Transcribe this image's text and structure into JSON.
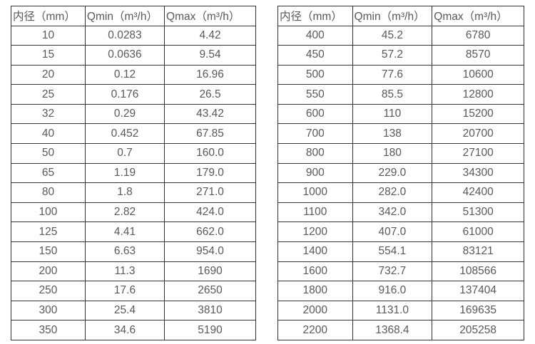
{
  "page": {
    "description_labels": {
      "diameter_header": "内径（mm）",
      "qmin_header": "Qmin（m³/h）",
      "qmax_header": "Qmax（m³/h）"
    }
  },
  "colors": {
    "text": "#595959",
    "border": "#333333",
    "background": "#ffffff"
  },
  "tables": [
    {
      "name": "small-diameter-flow-table",
      "headers": [
        "内径（mm）",
        "Qmin（m³/h）",
        "Qmax（m³/h）"
      ],
      "rows": [
        [
          "10",
          "0.0283",
          "4.42"
        ],
        [
          "15",
          "0.0636",
          "9.54"
        ],
        [
          "20",
          "0.12",
          "16.96"
        ],
        [
          "25",
          "0.176",
          "26.5"
        ],
        [
          "32",
          "0.29",
          "43.42"
        ],
        [
          "40",
          "0.452",
          "67.85"
        ],
        [
          "50",
          "0.7",
          "160.0"
        ],
        [
          "65",
          "1.19",
          "179.0"
        ],
        [
          "80",
          "1.8",
          "271.0"
        ],
        [
          "100",
          "2.82",
          "424.0"
        ],
        [
          "125",
          "4.41",
          "662.0"
        ],
        [
          "150",
          "6.63",
          "954.0"
        ],
        [
          "200",
          "11.3",
          "1690"
        ],
        [
          "250",
          "17.6",
          "2650"
        ],
        [
          "300",
          "25.4",
          "3810"
        ],
        [
          "350",
          "34.6",
          "5190"
        ]
      ]
    },
    {
      "name": "large-diameter-flow-table",
      "headers": [
        "内径（mm）",
        "Qmin（m³/h）",
        "Qmax（m³/h）"
      ],
      "rows": [
        [
          "400",
          "45.2",
          "6780"
        ],
        [
          "450",
          "57.2",
          "8570"
        ],
        [
          "500",
          "77.6",
          "10600"
        ],
        [
          "550",
          "85.5",
          "12800"
        ],
        [
          "600",
          "110",
          "15200"
        ],
        [
          "700",
          "138",
          "20700"
        ],
        [
          "800",
          "180",
          "27100"
        ],
        [
          "900",
          "229.0",
          "34300"
        ],
        [
          "1000",
          "282.0",
          "42400"
        ],
        [
          "1100",
          "342.0",
          "51300"
        ],
        [
          "1200",
          "407.0",
          "61000"
        ],
        [
          "1400",
          "554.1",
          "83121"
        ],
        [
          "1600",
          "732.7",
          "108566"
        ],
        [
          "1800",
          "916.0",
          "137404"
        ],
        [
          "2000",
          "1131.0",
          "169635"
        ],
        [
          "2200",
          "1368.4",
          "205258"
        ]
      ]
    }
  ]
}
